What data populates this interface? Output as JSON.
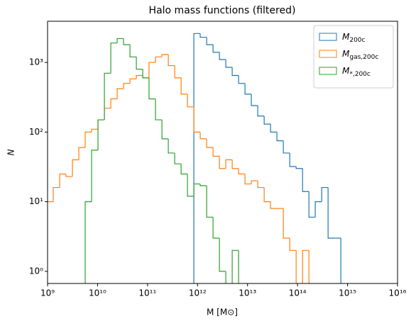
{
  "chart_data": {
    "type": "histogram",
    "title": "Halo mass functions (filtered)",
    "xlabel": "M [M⊙]",
    "ylabel": "N",
    "xscale": "log",
    "yscale": "log",
    "xlim": [
      1000000000.0,
      1e+16
    ],
    "ylim": [
      0.67,
      3900
    ],
    "xticks": [
      {
        "value": 1000000000.0,
        "label": "10⁹"
      },
      {
        "value": 10000000000.0,
        "label": "10¹⁰"
      },
      {
        "value": 100000000000.0,
        "label": "10¹¹"
      },
      {
        "value": 1000000000000.0,
        "label": "10¹²"
      },
      {
        "value": 10000000000000.0,
        "label": "10¹³"
      },
      {
        "value": 100000000000000.0,
        "label": "10¹⁴"
      },
      {
        "value": 1000000000000000.0,
        "label": "10¹⁵"
      },
      {
        "value": 1e+16,
        "label": "10¹⁶"
      }
    ],
    "yticks": [
      {
        "value": 1,
        "label": "10⁰"
      },
      {
        "value": 10,
        "label": "10¹"
      },
      {
        "value": 100,
        "label": "10²"
      },
      {
        "value": 1000,
        "label": "10³"
      }
    ],
    "legend": "upper right",
    "bins": [
      968000000.0,
      1300000000.0,
      1750000000.0,
      2340000000.0,
      3140000000.0,
      4220000000.0,
      5660000000.0,
      7600000000.0,
      10200000000.0,
      13700000000.0,
      18400000000.0,
      24700000000.0,
      33100000000.0,
      44500000000.0,
      59700000000.0,
      80100000000.0,
      107000000000.0,
      144000000000.0,
      194000000000.0,
      260000000000.0,
      349000000000.0,
      469000000000.0,
      628000000000.0,
      843000000000.0,
      1130000000000.0,
      1520000000000.0,
      2040000000000.0,
      2740000000000.0,
      3670000000000.0,
      4930000000000.0,
      6620000000000.0,
      8890000000000.0,
      11900000000000.0,
      16000000000000.0,
      21500000000000.0,
      28800000000000.0,
      38700000000000.0,
      52000000000000.0,
      69800000000000.0,
      93700000000000.0,
      126000000000000.0,
      169000000000000.0,
      226000000000000.0,
      304000000000000.0,
      408000000000000.0,
      548000000000000.0,
      735000000000000.0,
      986000000000000.0
    ],
    "series": [
      {
        "name": "M200c",
        "color": "#1f77b4",
        "values": [
          0,
          0,
          0,
          0,
          0,
          0,
          0,
          0,
          0,
          0,
          0,
          0,
          0,
          0,
          0,
          0,
          0,
          0,
          0,
          0,
          0,
          0,
          0,
          2600,
          2300,
          1800,
          1400,
          1100,
          850,
          650,
          500,
          350,
          240,
          170,
          130,
          100,
          75,
          50,
          32,
          30,
          14,
          6,
          10,
          16,
          3,
          3,
          0
        ]
      },
      {
        "name": "Mgas,200c",
        "color": "#ff7f0e",
        "values": [
          10,
          16,
          25,
          23,
          40,
          60,
          100,
          110,
          150,
          220,
          300,
          420,
          500,
          580,
          650,
          600,
          1000,
          1200,
          1300,
          900,
          600,
          350,
          230,
          100,
          80,
          60,
          45,
          30,
          40,
          30,
          25,
          18,
          20,
          16,
          10,
          8,
          8,
          3,
          2,
          0,
          2,
          0,
          0,
          0,
          0,
          0,
          0
        ]
      },
      {
        "name": "M*,200c",
        "color": "#2ca02c",
        "values": [
          0,
          0,
          0,
          0,
          0,
          0,
          10,
          55,
          150,
          700,
          1900,
          2200,
          1800,
          1200,
          800,
          600,
          300,
          150,
          80,
          50,
          35,
          25,
          12,
          18,
          17,
          6,
          3,
          1,
          0,
          2,
          0,
          0,
          0,
          0,
          0,
          0,
          0,
          0,
          0,
          0,
          0,
          0,
          0,
          0,
          0,
          0,
          0
        ]
      }
    ]
  }
}
